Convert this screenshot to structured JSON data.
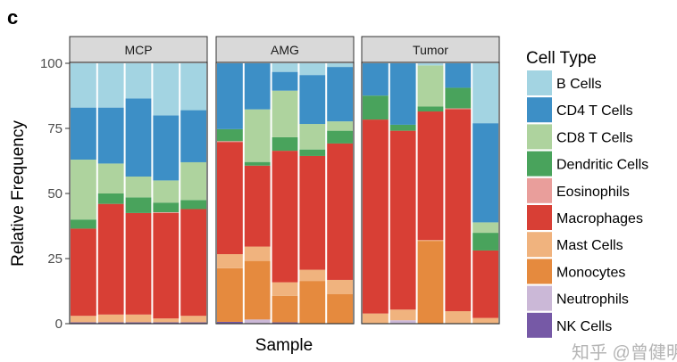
{
  "panel_label": "c",
  "watermark": "知乎 @曾健明",
  "chart_data": {
    "type": "bar",
    "stacked": true,
    "xlabel": "Sample",
    "ylabel": "Relative Frequency",
    "ylim": [
      0,
      100
    ],
    "yticks": [
      0,
      25,
      50,
      75,
      100
    ],
    "grid": false,
    "legend": {
      "title": "Cell Type",
      "placement": "right"
    },
    "cell_types": [
      "B Cells",
      "CD4 T Cells",
      "CD8 T Cells",
      "Dendritic Cells",
      "Eosinophils",
      "Macrophages",
      "Mast Cells",
      "Monocytes",
      "Neutrophils",
      "NK Cells"
    ],
    "colors": [
      "#a3d4e2",
      "#3d8fc6",
      "#aed39e",
      "#49a35c",
      "#e99e9b",
      "#d83f35",
      "#f0b37e",
      "#e58a3e",
      "#cbb8d7",
      "#7659a6"
    ],
    "facets": [
      {
        "name": "MCP",
        "samples": [
          {
            "B Cells": 17,
            "CD4 T Cells": 20,
            "CD8 T Cells": 23,
            "Dendritic Cells": 3.5,
            "Eosinophils": 0,
            "Macrophages": 33.5,
            "Mast Cells": 2.5,
            "Monocytes": 0,
            "Neutrophils": 0,
            "NK Cells": 0.5
          },
          {
            "B Cells": 17,
            "CD4 T Cells": 21.5,
            "CD8 T Cells": 11.5,
            "Dendritic Cells": 4,
            "Eosinophils": 0,
            "Macrophages": 42.5,
            "Mast Cells": 3,
            "Monocytes": 0,
            "Neutrophils": 0,
            "NK Cells": 0.5
          },
          {
            "B Cells": 13.5,
            "CD4 T Cells": 30,
            "CD8 T Cells": 8,
            "Dendritic Cells": 6,
            "Eosinophils": 0,
            "Macrophages": 39,
            "Mast Cells": 3,
            "Monocytes": 0,
            "Neutrophils": 0,
            "NK Cells": 0.5
          },
          {
            "B Cells": 20,
            "CD4 T Cells": 25,
            "CD8 T Cells": 8.5,
            "Dendritic Cells": 3.7,
            "Eosinophils": 0.3,
            "Macrophages": 40.5,
            "Mast Cells": 1.5,
            "Monocytes": 0,
            "Neutrophils": 0,
            "NK Cells": 0.5
          },
          {
            "B Cells": 18,
            "CD4 T Cells": 20,
            "CD8 T Cells": 14.5,
            "Dendritic Cells": 3.5,
            "Eosinophils": 0,
            "Macrophages": 41,
            "Mast Cells": 2.5,
            "Monocytes": 0,
            "Neutrophils": 0,
            "NK Cells": 0.5
          }
        ]
      },
      {
        "name": "AMG",
        "samples": [
          {
            "B Cells": 0,
            "CD4 T Cells": 25.3,
            "CD8 T Cells": 0,
            "Dendritic Cells": 4.6,
            "Eosinophils": 0.3,
            "Macrophages": 43.1,
            "Mast Cells": 5.4,
            "Monocytes": 20.6,
            "Neutrophils": 0,
            "NK Cells": 0.7
          },
          {
            "B Cells": 0,
            "CD4 T Cells": 17.7,
            "CD8 T Cells": 20.2,
            "Dendritic Cells": 1.4,
            "Eosinophils": 0,
            "Macrophages": 31.1,
            "Mast Cells": 5.5,
            "Monocytes": 22.5,
            "Neutrophils": 1.6,
            "NK Cells": 0
          },
          {
            "B Cells": 3.3,
            "CD4 T Cells": 7.2,
            "CD8 T Cells": 17.9,
            "Dendritic Cells": 5.2,
            "Eosinophils": 0,
            "Macrophages": 50.5,
            "Mast Cells": 5.2,
            "Monocytes": 10.2,
            "Neutrophils": 0,
            "NK Cells": 0.5
          },
          {
            "B Cells": 4.5,
            "CD4 T Cells": 18.8,
            "CD8 T Cells": 9.8,
            "Dendritic Cells": 2.5,
            "Eosinophils": 0,
            "Macrophages": 43.7,
            "Mast Cells": 4.3,
            "Monocytes": 16.4,
            "Neutrophils": 0,
            "NK Cells": 0
          },
          {
            "B Cells": 1.4,
            "CD4 T Cells": 20.9,
            "CD8 T Cells": 3.6,
            "Dendritic Cells": 4.9,
            "Eosinophils": 0,
            "Macrophages": 52.4,
            "Mast Cells": 5.5,
            "Monocytes": 11.3,
            "Neutrophils": 0,
            "NK Cells": 0
          }
        ]
      },
      {
        "name": "Tumor",
        "samples": [
          {
            "B Cells": 0,
            "CD4 T Cells": 12.4,
            "CD8 T Cells": 0,
            "Dendritic Cells": 9.2,
            "Eosinophils": 0,
            "Macrophages": 74.5,
            "Mast Cells": 3.9,
            "Monocytes": 0,
            "Neutrophils": 0,
            "NK Cells": 0
          },
          {
            "B Cells": 0,
            "CD4 T Cells": 23.6,
            "CD8 T Cells": 0,
            "Dendritic Cells": 2.3,
            "Eosinophils": 0,
            "Macrophages": 68.7,
            "Mast Cells": 4.1,
            "Monocytes": 0,
            "Neutrophils": 1.3,
            "NK Cells": 0
          },
          {
            "B Cells": 0.8,
            "CD4 T Cells": 0,
            "CD8 T Cells": 15.8,
            "Dendritic Cells": 1.9,
            "Eosinophils": 0,
            "Macrophages": 49.4,
            "Mast Cells": 0.3,
            "Monocytes": 31.8,
            "Neutrophils": 0,
            "NK Cells": 0
          },
          {
            "B Cells": 0,
            "CD4 T Cells": 9.4,
            "CD8 T Cells": 0,
            "Dendritic Cells": 7.9,
            "Eosinophils": 0.3,
            "Macrophages": 77.6,
            "Mast Cells": 4.8,
            "Monocytes": 0,
            "Neutrophils": 0,
            "NK Cells": 0
          },
          {
            "B Cells": 23,
            "CD4 T Cells": 38.1,
            "CD8 T Cells": 4,
            "Dendritic Cells": 6.8,
            "Eosinophils": 0,
            "Macrophages": 25.9,
            "Mast Cells": 2.2,
            "Monocytes": 0,
            "Neutrophils": 0,
            "NK Cells": 0
          }
        ]
      }
    ]
  }
}
